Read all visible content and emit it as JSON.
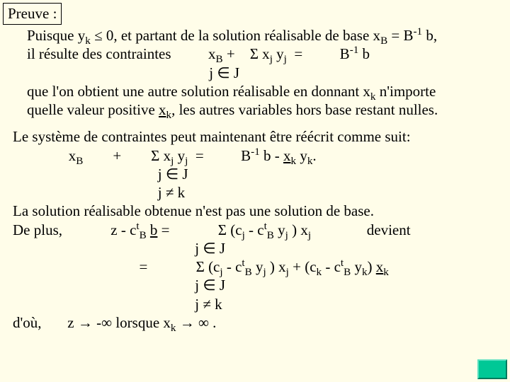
{
  "colors": {
    "background": "#fffde9",
    "text": "#000000",
    "nav_fill": "#00c896"
  },
  "typography": {
    "font_family": "Times New Roman",
    "body_fontsize_pt": 16,
    "line_height": 1.25
  },
  "header": {
    "label": "Preuve :"
  },
  "block1": {
    "l1a": "Puisque y",
    "l1sub1": "k",
    "l1b": " ≤ 0, et partant de la solution réalisable de base x",
    "l1sub2": "B",
    "l1c": " = B",
    "l1sup": "-1",
    "l1d": " b,",
    "l2a": "il résulte des contraintes",
    "l2gap1": "          ",
    "l2b": "x",
    "l2sub1": "B",
    "l2c": " +    Σ x",
    "l2sub2": "j",
    "l2d": " y",
    "l2sub3": "j",
    "l2e": "  =          B",
    "l2sup": "-1",
    "l2f": " b",
    "l3pad": "                                                 ",
    "l3a": "j ∈ J",
    "l4a": "que l'on obtient une autre solution réalisable en donnant x",
    "l4sub": "k",
    "l4b": " n'importe",
    "l5a": "quelle valeur positive ",
    "l5u": "x",
    "l5usub": "k",
    "l5b": ", les autres variables hors base restant nulles."
  },
  "block2": {
    "s1": "Le système de contraintes peut maintenant être réécrit comme suit:",
    "s2pad": "               ",
    "s2a": "x",
    "s2sub": "B",
    "s2b": "        +        Σ x",
    "s2sub2": "j",
    "s2c": " y",
    "s2sub3": "j",
    "s2d": "  =          B",
    "s2sup": "-1",
    "s2e": " b - ",
    "s2u": "x",
    "s2usub": "k",
    "s2f": " y",
    "s2sub4": "k",
    "s2g": ".",
    "s3pad": "                                       ",
    "s3a": "j ∈ J",
    "s4pad": "                                       ",
    "s4a": "j ≠ k",
    "s5": "La solution réalisable obtenue n'est pas une solution de base.",
    "s6a": "De plus,",
    "s6pad": "             ",
    "s6b": "z - c",
    "s6sup1": "t",
    "s6sub1": "B",
    "s6c": " ",
    "s6u": "b",
    "s6d": " =             Σ (c",
    "s6sub2": "j",
    "s6e": " - c",
    "s6sup2": "t",
    "s6sub3": "B",
    "s6f": " y",
    "s6sub4": "j",
    "s6g": " ) x",
    "s6sub5": "j",
    "s6h": "               devient",
    "s7pad": "                                                 ",
    "s7a": "j ∈ J",
    "s8pad": "                                  ",
    "s8a": "=             Σ (c",
    "s8sub1": "j",
    "s8b": " - c",
    "s8sup1": "t",
    "s8sub2": "B",
    "s8c": " y",
    "s8sub3": "j",
    "s8d": " ) x",
    "s8sub4": "j",
    "s8e": " + (c",
    "s8sub5": "k",
    "s8f": " - c",
    "s8sup2": "t",
    "s8sub6": "B",
    "s8g": " y",
    "s8sub7": "k",
    "s8h": ") ",
    "s8u": "x",
    "s8usub": "k",
    "s9pad": "                                                 ",
    "s9a": "j ∈ J",
    "s10pad": "                                                 ",
    "s10a": "j ≠ k",
    "s11a": "d'où,       z → -∞ lorsque x",
    "s11sub": "k",
    "s11b": " → ∞ ."
  }
}
